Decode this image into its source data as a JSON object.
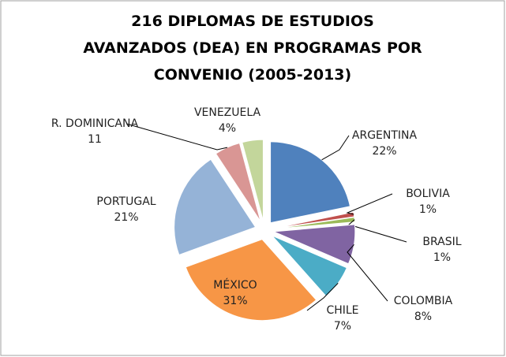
{
  "chart_data": {
    "type": "pie",
    "title": "216 DIPLOMAS DE ESTUDIOS AVANZADOS (DEA) EN PROGRAMAS POR CONVENIO (2005-2013)",
    "categories": [
      "ARGENTINA",
      "BOLIVIA",
      "BRASIL",
      "COLOMBIA",
      "CHILE",
      "MÉXICO",
      "PORTUGAL",
      "R. DOMINICANA",
      "VENEZUELA"
    ],
    "values": [
      47,
      2,
      2,
      17,
      15,
      67,
      46,
      11,
      9
    ],
    "value_labels": [
      "22%",
      "1%",
      "1%",
      "8%",
      "7%",
      "31%",
      "21%",
      "11",
      "4%"
    ],
    "colors": [
      "#4f81bd",
      "#c0504d",
      "#9bbb59",
      "#8064a2",
      "#4bacc6",
      "#f79646",
      "#95b3d7",
      "#d99694",
      "#c3d69b"
    ]
  }
}
